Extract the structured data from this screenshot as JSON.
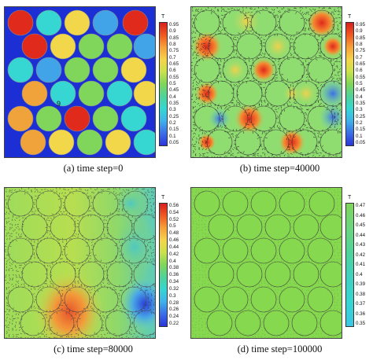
{
  "figure": {
    "panels": [
      {
        "caption": "(a) time step=0",
        "colorbar": {
          "title": "T",
          "ticks": [
            "0.95",
            "0.9",
            "0.85",
            "0.8",
            "0.75",
            "0.7",
            "0.65",
            "0.6",
            "0.55",
            "0.5",
            "0.45",
            "0.4",
            "0.35",
            "0.3",
            "0.25",
            "0.2",
            "0.15",
            "0.1",
            "0.05"
          ]
        },
        "marker": "9"
      },
      {
        "caption": "(b) time step=40000",
        "colorbar": {
          "title": "T",
          "ticks": [
            "0.95",
            "0.9",
            "0.85",
            "0.8",
            "0.75",
            "0.7",
            "0.65",
            "0.6",
            "0.55",
            "0.5",
            "0.45",
            "0.4",
            "0.35",
            "0.3",
            "0.25",
            "0.2",
            "0.15",
            "0.1",
            "0.05"
          ]
        }
      },
      {
        "caption": "(c) time step=80000",
        "colorbar": {
          "title": "T",
          "ticks": [
            "0.56",
            "0.54",
            "0.52",
            "0.5",
            "0.48",
            "0.46",
            "0.44",
            "0.42",
            "0.4",
            "0.38",
            "0.36",
            "0.34",
            "0.32",
            "0.3",
            "0.28",
            "0.26",
            "0.24",
            "0.22"
          ]
        }
      },
      {
        "caption": "(d) time step=100000",
        "colorbar": {
          "title": "T",
          "ticks": [
            "0.47",
            "0.46",
            "0.45",
            "0.44",
            "0.43",
            "0.42",
            "0.41",
            "0.4",
            "0.39",
            "0.38",
            "0.37",
            "0.36",
            "0.35"
          ]
        }
      }
    ],
    "colors": {
      "background_blue": "#1b2fd4",
      "hot_red": "#e02a1c",
      "orange": "#f0a33a",
      "yellow": "#f2d74a",
      "green": "#7fd65a",
      "cyan": "#36d6d2",
      "light_blue": "#41a4e8",
      "uniform_green": "#86d84e"
    }
  }
}
